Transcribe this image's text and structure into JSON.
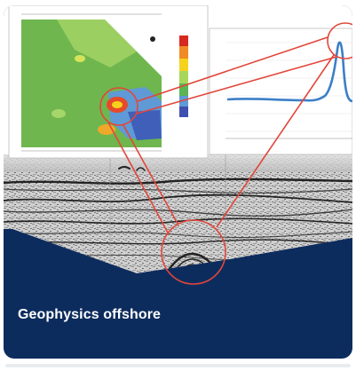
{
  "card": {
    "title": "Geophysics offshore",
    "accent_color": "#0d2c5e",
    "image_icon": "geophysics-survey-image"
  }
}
